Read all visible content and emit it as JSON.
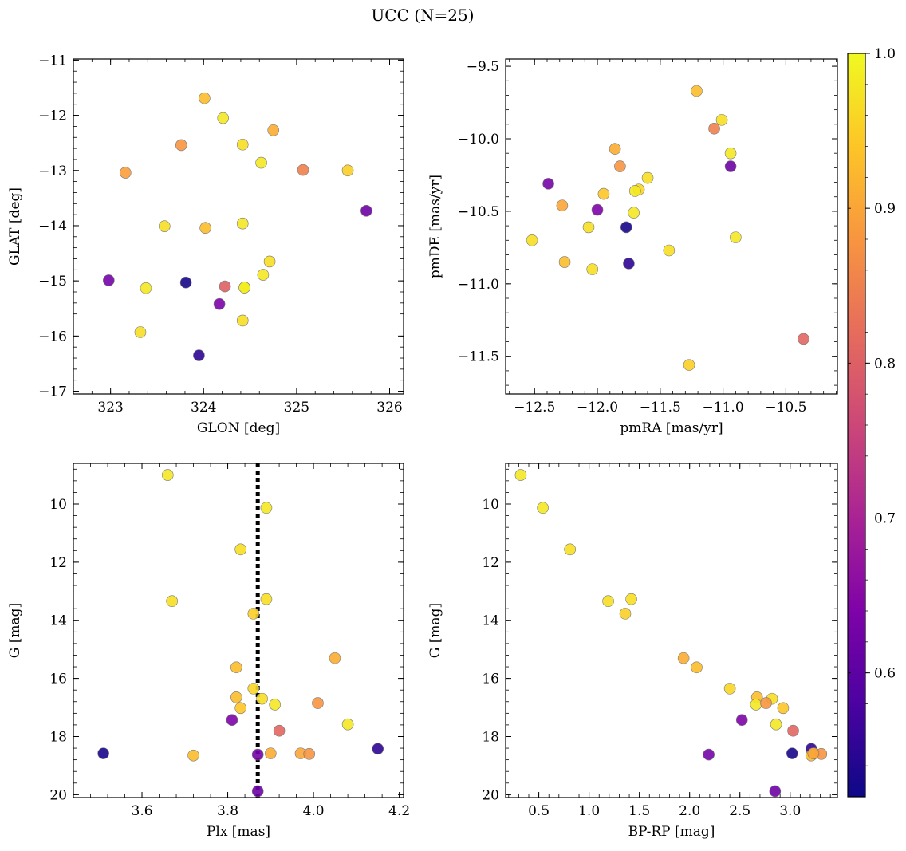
{
  "title": "UCC (N=25)",
  "colorbar": {
    "cmap": "plasma",
    "vmin": 0.52,
    "vmax": 1.0,
    "ticks": [
      0.6,
      0.7,
      0.8,
      0.9,
      1.0
    ],
    "tick_labels": [
      "0.6",
      "0.7",
      "0.8",
      "0.9",
      "1.0"
    ]
  },
  "chart_data": [
    {
      "type": "scatter",
      "panel": "top-left",
      "xlabel": "GLON [deg]",
      "ylabel": "GLAT [deg]",
      "xlim": [
        322.6,
        326.15
      ],
      "ylim": [
        -17.05,
        -10.98
      ],
      "y_inverted": false,
      "xticks": [
        323,
        324,
        325,
        326
      ],
      "xtick_labels": [
        "323",
        "324",
        "325",
        "326"
      ],
      "yticks": [
        -17,
        -16,
        -15,
        -14,
        -13,
        -12,
        -11
      ],
      "ytick_labels": [
        "−17",
        "−16",
        "−15",
        "−14",
        "−13",
        "−12",
        "−11"
      ],
      "points": [
        {
          "x": 324.01,
          "y": -11.69,
          "c": 0.93
        },
        {
          "x": 324.21,
          "y": -12.05,
          "c": 0.98
        },
        {
          "x": 324.75,
          "y": -12.27,
          "c": 0.91
        },
        {
          "x": 323.76,
          "y": -12.54,
          "c": 0.88
        },
        {
          "x": 324.42,
          "y": -12.53,
          "c": 0.97
        },
        {
          "x": 324.62,
          "y": -12.86,
          "c": 0.98
        },
        {
          "x": 323.16,
          "y": -13.04,
          "c": 0.89
        },
        {
          "x": 325.07,
          "y": -12.99,
          "c": 0.85
        },
        {
          "x": 325.55,
          "y": -13.0,
          "c": 0.95
        },
        {
          "x": 325.75,
          "y": -13.73,
          "c": 0.62
        },
        {
          "x": 323.58,
          "y": -14.01,
          "c": 0.97
        },
        {
          "x": 324.02,
          "y": -14.04,
          "c": 0.93
        },
        {
          "x": 324.42,
          "y": -13.96,
          "c": 0.98
        },
        {
          "x": 324.71,
          "y": -14.65,
          "c": 0.97
        },
        {
          "x": 324.64,
          "y": -14.89,
          "c": 0.98
        },
        {
          "x": 322.98,
          "y": -14.99,
          "c": 0.63
        },
        {
          "x": 323.38,
          "y": -15.13,
          "c": 0.98
        },
        {
          "x": 323.81,
          "y": -15.03,
          "c": 0.53
        },
        {
          "x": 324.23,
          "y": -15.1,
          "c": 0.8
        },
        {
          "x": 324.44,
          "y": -15.12,
          "c": 0.96
        },
        {
          "x": 324.17,
          "y": -15.42,
          "c": 0.64
        },
        {
          "x": 324.42,
          "y": -15.72,
          "c": 0.97
        },
        {
          "x": 323.32,
          "y": -15.93,
          "c": 0.97
        },
        {
          "x": 323.95,
          "y": -16.35,
          "c": 0.55
        },
        {
          "x": 324.44,
          "y": -15.12,
          "c": 0.99
        }
      ]
    },
    {
      "type": "scatter",
      "panel": "top-right",
      "xlabel": "pmRA [mas/yr]",
      "ylabel": "pmDE [mas/yr]",
      "xlim": [
        -12.73,
        -10.09
      ],
      "ylim": [
        -11.76,
        -9.45
      ],
      "y_inverted": false,
      "xticks": [
        -12.5,
        -12.0,
        -11.5,
        -11.0,
        -10.5
      ],
      "xtick_labels": [
        "−12.5",
        "−12.0",
        "−11.5",
        "−11.0",
        "−10.5"
      ],
      "yticks": [
        -11.5,
        -11.0,
        -10.5,
        -10.0,
        -9.5
      ],
      "ytick_labels": [
        "−11.5",
        "−11.0",
        "−10.5",
        "−10.0",
        "−9.5"
      ],
      "points": [
        {
          "x": -11.21,
          "y": -9.67,
          "c": 0.93
        },
        {
          "x": -11.01,
          "y": -9.87,
          "c": 0.97
        },
        {
          "x": -11.07,
          "y": -9.93,
          "c": 0.85
        },
        {
          "x": -11.86,
          "y": -10.07,
          "c": 0.91
        },
        {
          "x": -10.94,
          "y": -10.1,
          "c": 0.98
        },
        {
          "x": -11.82,
          "y": -10.19,
          "c": 0.88
        },
        {
          "x": -10.94,
          "y": -10.19,
          "c": 0.62
        },
        {
          "x": -11.6,
          "y": -10.27,
          "c": 0.97
        },
        {
          "x": -12.39,
          "y": -10.31,
          "c": 0.63
        },
        {
          "x": -11.67,
          "y": -10.35,
          "c": 0.96
        },
        {
          "x": -11.7,
          "y": -10.36,
          "c": 0.98
        },
        {
          "x": -11.95,
          "y": -10.38,
          "c": 0.94
        },
        {
          "x": -12.28,
          "y": -10.46,
          "c": 0.9
        },
        {
          "x": -12.0,
          "y": -10.49,
          "c": 0.64
        },
        {
          "x": -11.71,
          "y": -10.51,
          "c": 0.98
        },
        {
          "x": -12.07,
          "y": -10.61,
          "c": 0.97
        },
        {
          "x": -11.77,
          "y": -10.61,
          "c": 0.53
        },
        {
          "x": -10.9,
          "y": -10.68,
          "c": 0.98
        },
        {
          "x": -12.52,
          "y": -10.7,
          "c": 0.97
        },
        {
          "x": -11.43,
          "y": -10.77,
          "c": 0.97
        },
        {
          "x": -12.26,
          "y": -10.85,
          "c": 0.93
        },
        {
          "x": -11.75,
          "y": -10.86,
          "c": 0.55
        },
        {
          "x": -12.04,
          "y": -10.9,
          "c": 0.97
        },
        {
          "x": -10.36,
          "y": -11.38,
          "c": 0.81
        },
        {
          "x": -11.27,
          "y": -11.56,
          "c": 0.95
        }
      ]
    },
    {
      "type": "scatter",
      "panel": "bottom-left",
      "xlabel": "Plx [mas]",
      "ylabel": "G [mag]",
      "xlim": [
        3.44,
        4.21
      ],
      "ylim": [
        8.6,
        20.1
      ],
      "y_inverted": true,
      "xticks": [
        3.6,
        3.8,
        4.0,
        4.2
      ],
      "xtick_labels": [
        "3.6",
        "3.8",
        "4.0",
        "4.2"
      ],
      "yticks": [
        10,
        12,
        14,
        16,
        18,
        20
      ],
      "ytick_labels": [
        "10",
        "12",
        "14",
        "16",
        "18",
        "20"
      ],
      "vline": {
        "x": 3.87,
        "style": "dotted"
      },
      "points": [
        {
          "x": 3.66,
          "y": 9.0,
          "c": 0.98
        },
        {
          "x": 3.89,
          "y": 10.13,
          "c": 0.98
        },
        {
          "x": 3.83,
          "y": 11.56,
          "c": 0.97
        },
        {
          "x": 3.67,
          "y": 13.34,
          "c": 0.97
        },
        {
          "x": 3.89,
          "y": 13.27,
          "c": 0.97
        },
        {
          "x": 3.86,
          "y": 13.77,
          "c": 0.95
        },
        {
          "x": 4.05,
          "y": 15.3,
          "c": 0.91
        },
        {
          "x": 3.82,
          "y": 15.62,
          "c": 0.93
        },
        {
          "x": 3.86,
          "y": 16.35,
          "c": 0.96
        },
        {
          "x": 3.82,
          "y": 16.65,
          "c": 0.93
        },
        {
          "x": 3.88,
          "y": 16.7,
          "c": 0.97
        },
        {
          "x": 3.91,
          "y": 16.9,
          "c": 0.98
        },
        {
          "x": 4.01,
          "y": 16.85,
          "c": 0.88
        },
        {
          "x": 3.83,
          "y": 17.02,
          "c": 0.94
        },
        {
          "x": 4.08,
          "y": 17.58,
          "c": 0.98
        },
        {
          "x": 3.81,
          "y": 17.43,
          "c": 0.64
        },
        {
          "x": 3.92,
          "y": 17.8,
          "c": 0.81
        },
        {
          "x": 3.51,
          "y": 18.58,
          "c": 0.53
        },
        {
          "x": 3.72,
          "y": 18.65,
          "c": 0.93
        },
        {
          "x": 3.87,
          "y": 18.62,
          "c": 0.63
        },
        {
          "x": 3.9,
          "y": 18.58,
          "c": 0.91
        },
        {
          "x": 3.97,
          "y": 18.58,
          "c": 0.9
        },
        {
          "x": 3.99,
          "y": 18.6,
          "c": 0.88
        },
        {
          "x": 4.15,
          "y": 18.42,
          "c": 0.55
        },
        {
          "x": 3.87,
          "y": 19.88,
          "c": 0.62
        }
      ]
    },
    {
      "type": "scatter",
      "panel": "bottom-right",
      "xlabel": "BP-RP [mag]",
      "ylabel": "G [mag]",
      "xlim": [
        0.17,
        3.47
      ],
      "ylim": [
        8.6,
        20.1
      ],
      "y_inverted": true,
      "xticks": [
        0.5,
        1.0,
        1.5,
        2.0,
        2.5,
        3.0
      ],
      "xtick_labels": [
        "0.5",
        "1.0",
        "1.5",
        "2.0",
        "2.5",
        "3.0"
      ],
      "yticks": [
        10,
        12,
        14,
        16,
        18,
        20
      ],
      "ytick_labels": [
        "10",
        "12",
        "14",
        "16",
        "18",
        "20"
      ],
      "points": [
        {
          "x": 0.32,
          "y": 9.0,
          "c": 0.98
        },
        {
          "x": 0.54,
          "y": 10.13,
          "c": 0.98
        },
        {
          "x": 0.81,
          "y": 11.56,
          "c": 0.97
        },
        {
          "x": 1.19,
          "y": 13.34,
          "c": 0.97
        },
        {
          "x": 1.42,
          "y": 13.27,
          "c": 0.97
        },
        {
          "x": 1.36,
          "y": 13.77,
          "c": 0.95
        },
        {
          "x": 1.94,
          "y": 15.3,
          "c": 0.91
        },
        {
          "x": 2.07,
          "y": 15.62,
          "c": 0.93
        },
        {
          "x": 2.4,
          "y": 16.35,
          "c": 0.96
        },
        {
          "x": 2.67,
          "y": 16.65,
          "c": 0.93
        },
        {
          "x": 2.82,
          "y": 16.7,
          "c": 0.97
        },
        {
          "x": 2.66,
          "y": 16.9,
          "c": 0.98
        },
        {
          "x": 2.76,
          "y": 16.85,
          "c": 0.88
        },
        {
          "x": 2.93,
          "y": 17.02,
          "c": 0.94
        },
        {
          "x": 2.86,
          "y": 17.58,
          "c": 0.98
        },
        {
          "x": 2.52,
          "y": 17.43,
          "c": 0.64
        },
        {
          "x": 3.03,
          "y": 17.8,
          "c": 0.81
        },
        {
          "x": 3.02,
          "y": 18.58,
          "c": 0.53
        },
        {
          "x": 3.21,
          "y": 18.42,
          "c": 0.55
        },
        {
          "x": 3.21,
          "y": 18.65,
          "c": 0.93
        },
        {
          "x": 3.24,
          "y": 18.58,
          "c": 0.91
        },
        {
          "x": 3.31,
          "y": 18.6,
          "c": 0.88
        },
        {
          "x": 3.23,
          "y": 18.58,
          "c": 0.9
        },
        {
          "x": 2.19,
          "y": 18.62,
          "c": 0.63
        },
        {
          "x": 2.85,
          "y": 19.88,
          "c": 0.62
        }
      ]
    }
  ]
}
